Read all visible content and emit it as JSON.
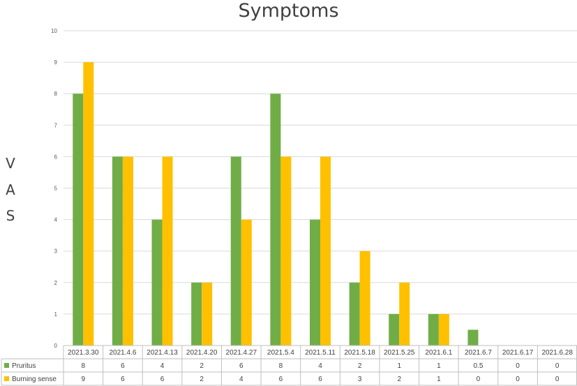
{
  "chart_data": {
    "type": "bar",
    "title": "Symptoms",
    "ylabel": "VAS",
    "ylabel_letters": [
      "V",
      "A",
      "S"
    ],
    "ylim": [
      0,
      10
    ],
    "yticks": [
      0,
      1,
      2,
      3,
      4,
      5,
      6,
      7,
      8,
      9,
      10
    ],
    "grid": true,
    "legend": "data-table",
    "categories": [
      "2021.3.30",
      "2021.4.6",
      "2021.4.13",
      "2021.4.20",
      "2021.4.27",
      "2021.5.4",
      "2021.5.11",
      "2021.5.18",
      "2021.5.25",
      "2021.6.1",
      "2021.6.7",
      "2021.6.17",
      "2021.6.28"
    ],
    "series": [
      {
        "name": "Pruritus",
        "color": "#70ad47",
        "values": [
          8,
          6,
          4,
          2,
          6,
          8,
          4,
          2,
          1,
          1,
          0.5,
          0,
          0
        ],
        "labels": [
          "8",
          "6",
          "4",
          "2",
          "6",
          "8",
          "4",
          "2",
          "1",
          "1",
          "0.5",
          "0",
          "0"
        ]
      },
      {
        "name": "Burning sense",
        "color": "#ffc000",
        "values": [
          9,
          6,
          6,
          2,
          4,
          6,
          6,
          3,
          2,
          1,
          0,
          0,
          0
        ],
        "labels": [
          "9",
          "6",
          "6",
          "2",
          "4",
          "6",
          "6",
          "3",
          "2",
          "1",
          "0",
          "0",
          "0"
        ]
      }
    ]
  }
}
